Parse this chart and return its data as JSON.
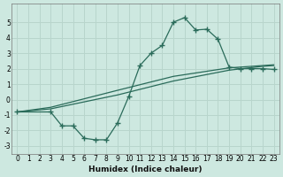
{
  "xlabel": "Humidex (Indice chaleur)",
  "bg_color": "#cde8e0",
  "grid_color": "#b8d5cc",
  "line_color": "#2a6b5a",
  "xlim": [
    -0.5,
    23.5
  ],
  "ylim": [
    -3.5,
    6.2
  ],
  "yticks": [
    -3,
    -2,
    -1,
    0,
    1,
    2,
    3,
    4,
    5
  ],
  "xticks": [
    0,
    1,
    2,
    3,
    4,
    5,
    6,
    7,
    8,
    9,
    10,
    11,
    12,
    13,
    14,
    15,
    16,
    17,
    18,
    19,
    20,
    21,
    22,
    23
  ],
  "line1_x": [
    0,
    3,
    9,
    14,
    19,
    22,
    23
  ],
  "line1_y": [
    -0.8,
    -0.6,
    0.3,
    1.2,
    1.9,
    2.15,
    2.2
  ],
  "line2_x": [
    0,
    3,
    9,
    14,
    19,
    22,
    23
  ],
  "line2_y": [
    -0.8,
    -0.5,
    0.6,
    1.5,
    2.05,
    2.2,
    2.25
  ],
  "curve_x": [
    0,
    3,
    4,
    5,
    6,
    7,
    8,
    9,
    10,
    11,
    12,
    13,
    14,
    15,
    16,
    17,
    18,
    19,
    20,
    21,
    22,
    23
  ],
  "curve_y": [
    -0.8,
    -0.8,
    -1.7,
    -1.7,
    -2.5,
    -2.6,
    -2.6,
    -1.5,
    0.2,
    2.2,
    3.0,
    3.5,
    5.0,
    5.3,
    4.5,
    4.55,
    3.9,
    2.1,
    2.0,
    2.0,
    2.0,
    1.95
  ]
}
